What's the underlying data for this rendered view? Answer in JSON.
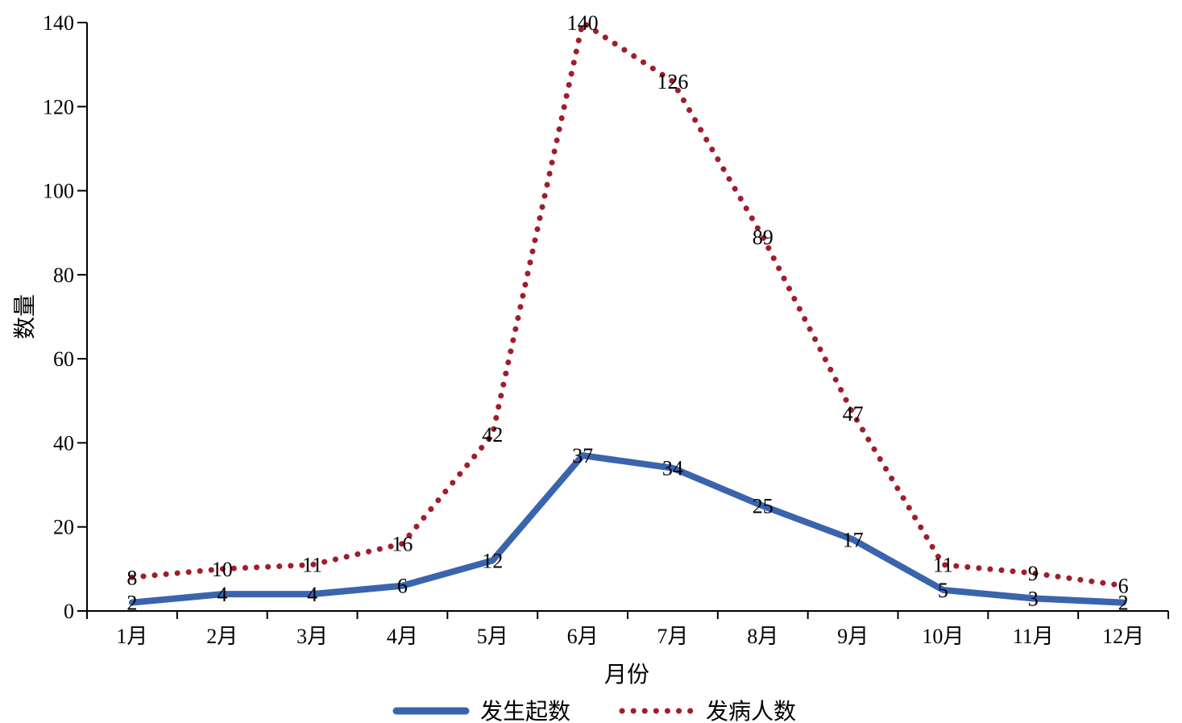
{
  "chart_data": {
    "type": "line",
    "title": "",
    "xlabel": "月份",
    "ylabel": "数量",
    "categories": [
      "1月",
      "2月",
      "3月",
      "4月",
      "5月",
      "6月",
      "7月",
      "8月",
      "9月",
      "10月",
      "11月",
      "12月"
    ],
    "ylim": [
      0,
      140
    ],
    "yticks": [
      "0",
      "20",
      "40",
      "60",
      "80",
      "100",
      "120",
      "140"
    ],
    "grid": false,
    "legend_position": "bottom",
    "series": [
      {
        "name": "发生起数",
        "values": [
          2,
          4,
          4,
          6,
          12,
          37,
          34,
          25,
          17,
          5,
          3,
          2
        ],
        "color": "#3A64AD",
        "style": "solid"
      },
      {
        "name": "发病人数",
        "values": [
          8,
          10,
          11,
          16,
          42,
          140,
          126,
          89,
          47,
          11,
          9,
          6
        ],
        "color": "#A11D2B",
        "style": "dotted"
      }
    ]
  }
}
